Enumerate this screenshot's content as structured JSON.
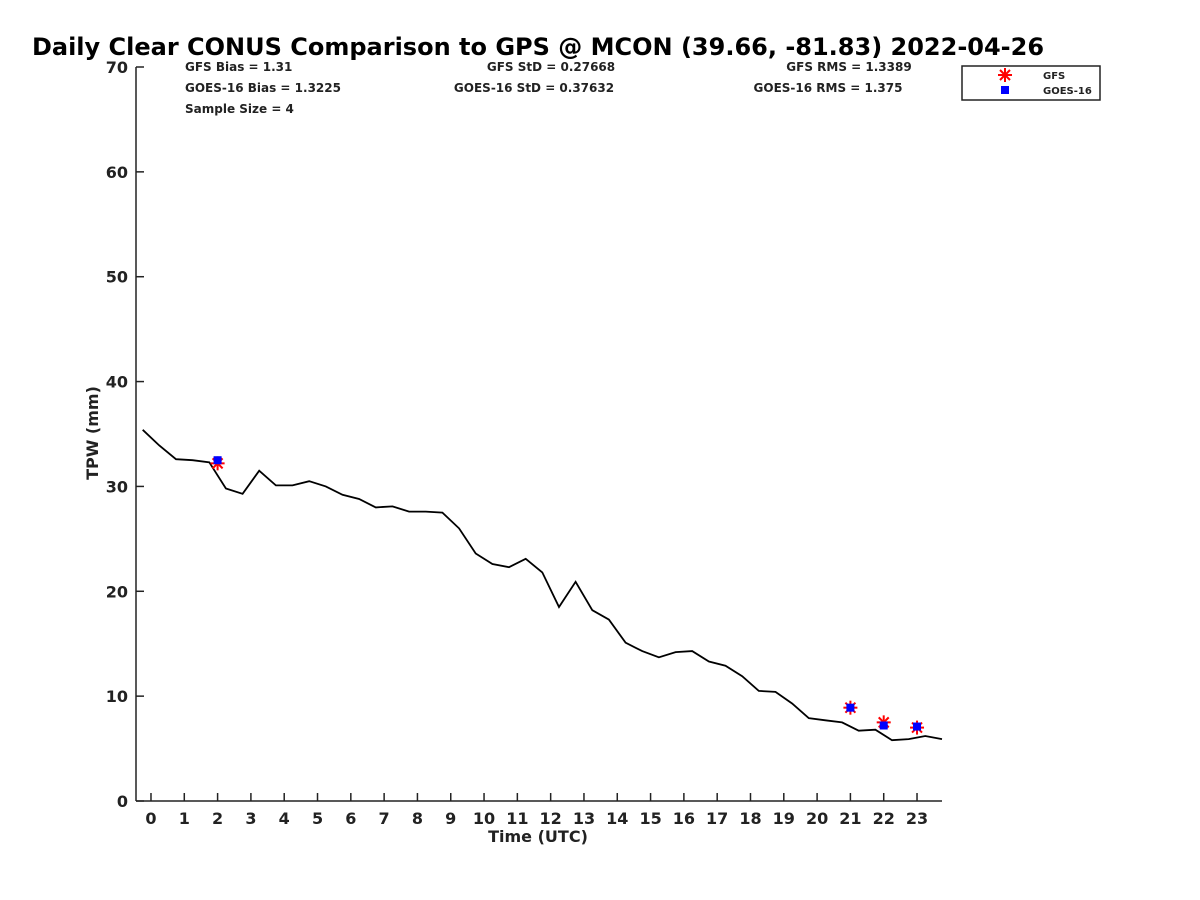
{
  "chart_data": {
    "type": "line",
    "title": "Daily Clear CONUS Comparison to GPS @ MCON (39.66, -81.83) 2022-04-26",
    "xlabel": "Time (UTC)",
    "ylabel": "TPW (mm)",
    "xlim": [
      -0.45,
      23.75
    ],
    "ylim": [
      0,
      70
    ],
    "xticks": [
      0,
      1,
      2,
      3,
      4,
      5,
      6,
      7,
      8,
      9,
      10,
      11,
      12,
      13,
      14,
      15,
      16,
      17,
      18,
      19,
      20,
      21,
      22,
      23
    ],
    "yticks": [
      0,
      10,
      20,
      30,
      40,
      50,
      60,
      70
    ],
    "grid": false,
    "legend_position": "top-right",
    "colors": {
      "line": "#000000",
      "gfs": "#ff0000",
      "goes": "#0000ff",
      "axis": "#222222"
    },
    "series": [
      {
        "kind": "line",
        "x": [
          -0.25,
          0.25,
          0.75,
          1.25,
          1.75,
          2.25,
          2.75,
          3.25,
          3.75,
          4.25,
          4.75,
          5.25,
          5.75,
          6.25,
          6.75,
          7.25,
          7.75,
          8.25,
          8.75,
          9.25,
          9.75,
          10.25,
          10.75,
          11.25,
          11.75,
          12.25,
          12.75,
          13.25,
          13.75,
          14.25,
          14.75,
          15.25,
          15.75,
          16.25,
          16.75,
          17.25,
          17.75,
          18.25,
          18.75,
          19.25,
          19.75,
          20.25,
          20.75,
          21.25,
          21.75,
          22.25,
          22.75,
          23.25,
          23.75
        ],
        "y": [
          35.4,
          33.9,
          32.6,
          32.5,
          32.3,
          29.8,
          29.3,
          31.5,
          30.1,
          30.1,
          30.5,
          30.0,
          29.2,
          28.8,
          28.0,
          28.1,
          27.6,
          27.6,
          27.5,
          26.0,
          23.6,
          22.6,
          22.3,
          23.1,
          21.8,
          18.5,
          20.9,
          18.2,
          17.3,
          15.1,
          14.3,
          13.7,
          14.2,
          14.3,
          13.3,
          12.9,
          11.9,
          10.5,
          10.4,
          9.3,
          7.9,
          7.7,
          7.5,
          6.7,
          6.8,
          5.8,
          5.9,
          6.2,
          5.9
        ]
      },
      {
        "name": "GFS",
        "kind": "marker",
        "x": [
          2,
          21,
          22,
          23
        ],
        "y": [
          32.2,
          8.9,
          7.5,
          7.0
        ]
      },
      {
        "name": "GOES-16",
        "kind": "marker",
        "x": [
          2,
          21,
          22,
          23
        ],
        "y": [
          32.5,
          8.9,
          7.2,
          7.1
        ]
      }
    ],
    "stats": {
      "gfs_bias": "GFS Bias = 1.31",
      "gfs_std": "GFS StD = 0.27668",
      "gfs_rms": "GFS RMS = 1.3389",
      "goes_bias": "GOES-16 Bias = 1.3225",
      "goes_std": "GOES-16 StD = 0.37632",
      "goes_rms": "GOES-16 RMS = 1.375",
      "sample_size": "Sample Size = 4"
    },
    "legend": {
      "gfs_label": "GFS",
      "goes_label": "GOES-16"
    }
  }
}
